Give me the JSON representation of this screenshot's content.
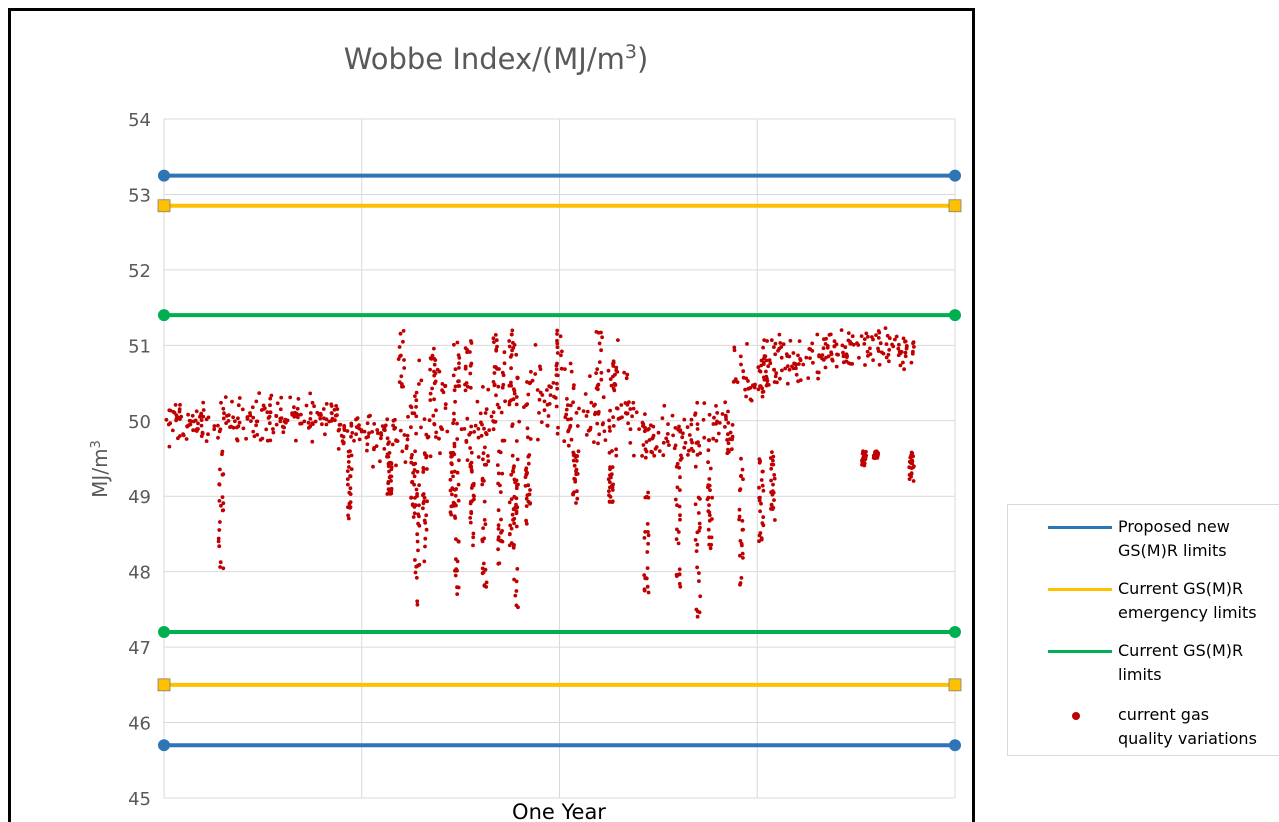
{
  "chart_data": {
    "type": "scatter",
    "title_main": "Wobbe Index/(MJ/m",
    "title_sup": "3",
    "title_end": ")",
    "xlabel": "One Year",
    "ylabel_main": "MJ/m",
    "ylabel_sup": "3",
    "ylim": [
      45,
      54
    ],
    "ytick_labels": [
      "45",
      "46",
      "47",
      "48",
      "49",
      "50",
      "51",
      "52",
      "53",
      "54"
    ],
    "xlim": [
      0,
      1
    ],
    "x_gridlines": 4,
    "grid": true,
    "legend_position": "right, outside",
    "limit_series": [
      {
        "name_line1": "Proposed new",
        "name_line2": "GS(M)R limits",
        "color": "#2e75b6",
        "values": [
          45.7,
          53.25
        ]
      },
      {
        "name_line1": "Current GS(M)R",
        "name_line2": "emergency limits",
        "color": "#ffc000",
        "values": [
          46.5,
          52.85
        ]
      },
      {
        "name_line1": "Current GS(M)R",
        "name_line2": "limits",
        "color": "#00b050",
        "values": [
          47.2,
          51.4
        ]
      }
    ],
    "scatter_series": {
      "name_line1": "current gas",
      "name_line2": "quality variations",
      "color": "#c00000",
      "segments": [
        {
          "x0": 0.0,
          "x1": 0.07,
          "center": 49.95,
          "spread": 0.3
        },
        {
          "x0": 0.07,
          "x1": 0.15,
          "center": 50.05,
          "spread": 0.35
        },
        {
          "x0": 0.15,
          "x1": 0.22,
          "center": 50.05,
          "spread": 0.3
        },
        {
          "x0": 0.22,
          "x1": 0.26,
          "center": 49.85,
          "spread": 0.25
        },
        {
          "x0": 0.26,
          "x1": 0.31,
          "center": 49.75,
          "spread": 0.45
        },
        {
          "x0": 0.31,
          "x1": 0.36,
          "center": 50.2,
          "spread": 0.6
        },
        {
          "x0": 0.36,
          "x1": 0.42,
          "center": 49.9,
          "spread": 0.7
        },
        {
          "x0": 0.42,
          "x1": 0.48,
          "center": 50.35,
          "spread": 0.65
        },
        {
          "x0": 0.48,
          "x1": 0.54,
          "center": 50.15,
          "spread": 0.6
        },
        {
          "x0": 0.54,
          "x1": 0.6,
          "center": 50.1,
          "spread": 0.6
        },
        {
          "x0": 0.6,
          "x1": 0.67,
          "center": 49.75,
          "spread": 0.4
        },
        {
          "x0": 0.67,
          "x1": 0.72,
          "center": 49.85,
          "spread": 0.4
        },
        {
          "x0": 0.72,
          "x1": 0.76,
          "center": 50.55,
          "spread": 0.55
        },
        {
          "x0": 0.76,
          "x1": 0.83,
          "center": 50.75,
          "spread": 0.45
        },
        {
          "x0": 0.83,
          "x1": 0.9,
          "center": 50.95,
          "spread": 0.3
        },
        {
          "x0": 0.9,
          "x1": 0.95,
          "center": 50.95,
          "spread": 0.3
        }
      ],
      "dips": [
        {
          "x": 0.072,
          "min": 47.95
        },
        {
          "x": 0.235,
          "min": 48.7
        },
        {
          "x": 0.285,
          "min": 49.0
        },
        {
          "x": 0.315,
          "min": 48.7
        },
        {
          "x": 0.32,
          "min": 47.5
        },
        {
          "x": 0.33,
          "min": 47.9
        },
        {
          "x": 0.365,
          "min": 48.7
        },
        {
          "x": 0.37,
          "min": 47.7
        },
        {
          "x": 0.39,
          "min": 48.2
        },
        {
          "x": 0.405,
          "min": 47.6
        },
        {
          "x": 0.425,
          "min": 48.1
        },
        {
          "x": 0.44,
          "min": 48.3
        },
        {
          "x": 0.445,
          "min": 47.4
        },
        {
          "x": 0.46,
          "min": 48.6
        },
        {
          "x": 0.52,
          "min": 48.9
        },
        {
          "x": 0.565,
          "min": 48.9
        },
        {
          "x": 0.61,
          "min": 47.5
        },
        {
          "x": 0.65,
          "min": 47.7
        },
        {
          "x": 0.675,
          "min": 47.3
        },
        {
          "x": 0.69,
          "min": 48.3
        },
        {
          "x": 0.73,
          "min": 47.8
        },
        {
          "x": 0.755,
          "min": 48.4
        },
        {
          "x": 0.77,
          "min": 48.6
        },
        {
          "x": 0.885,
          "min": 49.4
        },
        {
          "x": 0.9,
          "min": 49.5
        },
        {
          "x": 0.945,
          "min": 49.2
        }
      ],
      "spikes": [
        {
          "x": 0.3,
          "max": 51.2
        },
        {
          "x": 0.34,
          "max": 51.0
        },
        {
          "x": 0.37,
          "max": 51.1
        },
        {
          "x": 0.385,
          "max": 51.1
        },
        {
          "x": 0.42,
          "max": 51.2
        },
        {
          "x": 0.44,
          "max": 51.2
        },
        {
          "x": 0.5,
          "max": 51.2
        },
        {
          "x": 0.55,
          "max": 51.2
        },
        {
          "x": 0.57,
          "max": 51.1
        },
        {
          "x": 0.76,
          "max": 51.1
        }
      ]
    }
  }
}
